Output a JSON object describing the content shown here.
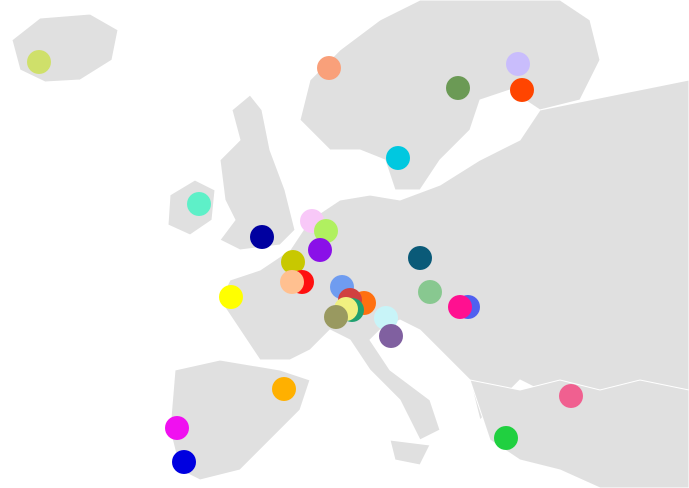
{
  "markers": [
    {
      "color": "#cfe06a"
    },
    {
      "color": "#f9a07a"
    },
    {
      "color": "#6b9a55"
    },
    {
      "color": "#c9bdfc"
    },
    {
      "color": "#ff4500"
    },
    {
      "color": "#00c8e0"
    },
    {
      "color": "#5ef0c8"
    },
    {
      "color": "#0000a0"
    },
    {
      "color": "#f8c8f8"
    },
    {
      "color": "#b0f060"
    },
    {
      "color": "#8a10e8"
    },
    {
      "color": "#c8c800"
    },
    {
      "color": "#ff1010"
    },
    {
      "color": "#ffc090"
    },
    {
      "color": "#ffff00"
    },
    {
      "color": "#6f9cf0"
    },
    {
      "color": "#ff7010"
    },
    {
      "color": "#d04040"
    },
    {
      "color": "#20a070"
    },
    {
      "color": "#f0f080"
    },
    {
      "color": "#999960"
    },
    {
      "color": "#c8f4f8"
    },
    {
      "color": "#8060a0"
    },
    {
      "color": "#0a5a78"
    },
    {
      "color": "#88c890"
    },
    {
      "color": "#5060f0"
    },
    {
      "color": "#ff1090"
    },
    {
      "color": "#ffb000"
    },
    {
      "color": "#f010f0"
    },
    {
      "color": "#0000e0"
    },
    {
      "color": "#f06090"
    },
    {
      "color": "#20d040"
    }
  ]
}
